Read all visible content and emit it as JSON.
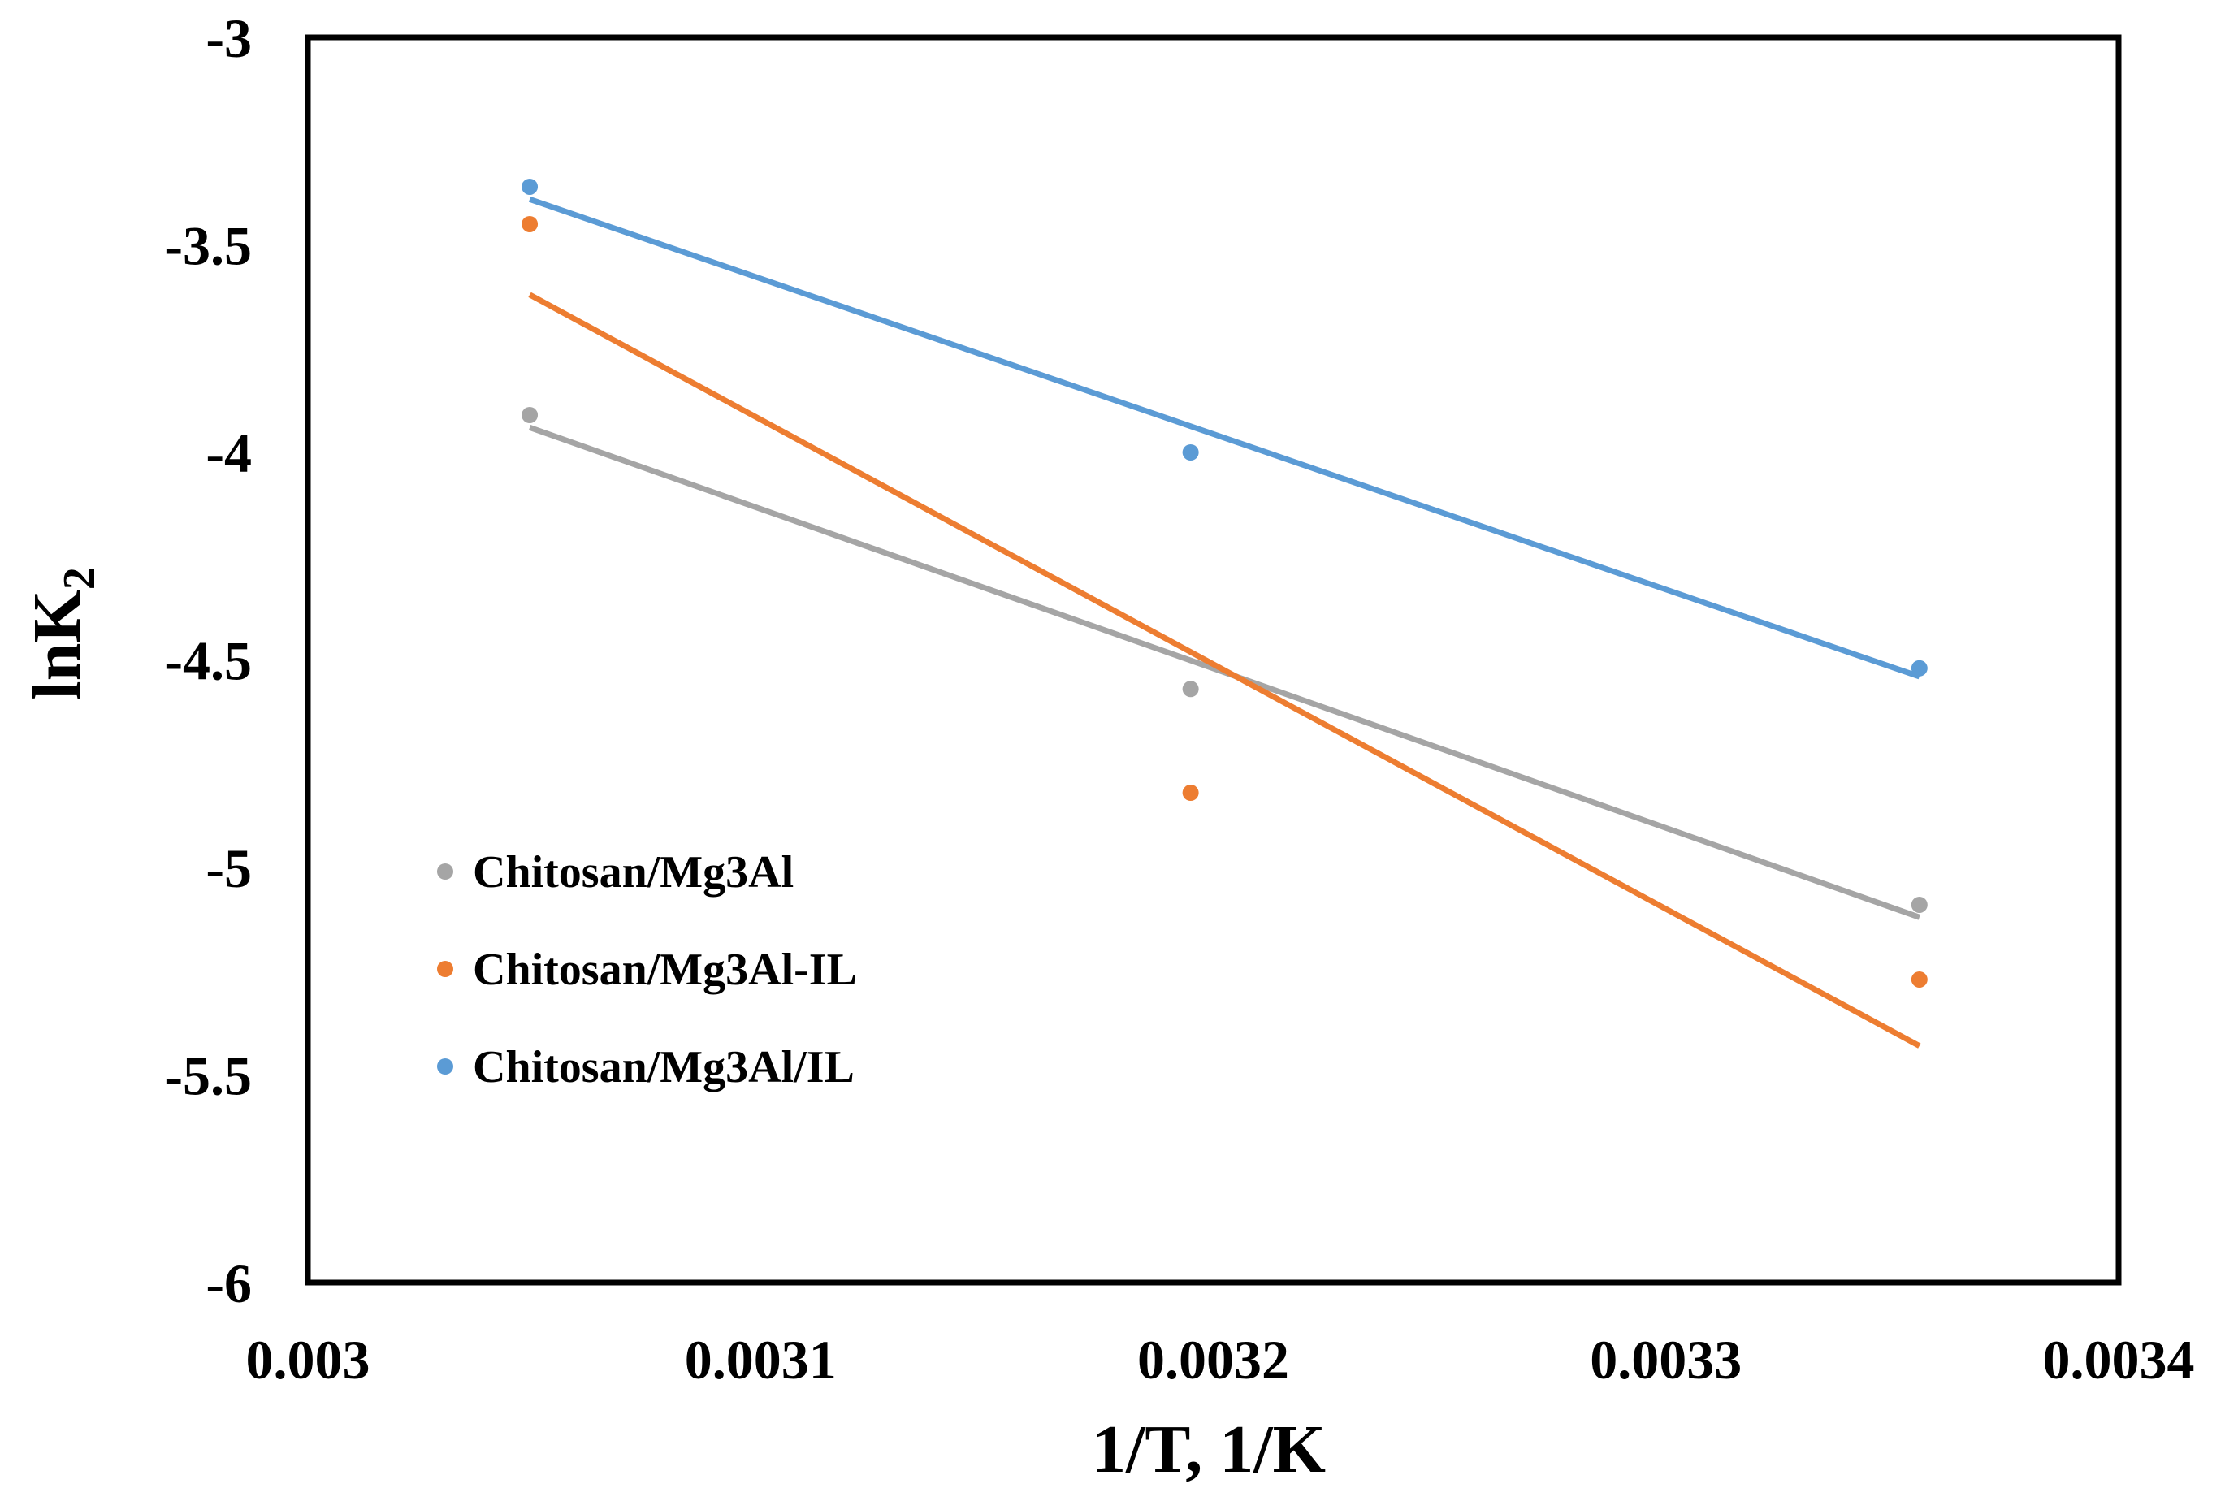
{
  "chart_data": {
    "type": "scatter",
    "title": "",
    "xlabel": "1/T, 1/K",
    "ylabel": {
      "main": "lnK",
      "subscript": "2"
    },
    "xlim": [
      0.003,
      0.0034
    ],
    "ylim": [
      -6,
      -3
    ],
    "xticks": [
      "0.003",
      "0.0031",
      "0.0032",
      "0.0033",
      "0.0034"
    ],
    "yticks": [
      "-3",
      "-3.5",
      "-4",
      "-4.5",
      "-5",
      "-5.5",
      "-6"
    ],
    "grid": false,
    "legend_position": "lower-left",
    "series": [
      {
        "name": "Chitosan/Mg3Al",
        "color": "#a5a5a5",
        "x": [
          0.003049,
          0.003195,
          0.003356
        ],
        "y": [
          -3.91,
          -4.57,
          -5.09
        ],
        "trendline": {
          "type": "linear",
          "from": [
            0.003049,
            -3.94
          ],
          "to": [
            0.003356,
            -5.12
          ]
        }
      },
      {
        "name": "Chitosan/Mg3Al-IL",
        "color": "#ed7d31",
        "x": [
          0.003049,
          0.003195,
          0.003356
        ],
        "y": [
          -3.45,
          -4.82,
          -5.27
        ],
        "trendline": {
          "type": "linear",
          "from": [
            0.003049,
            -3.62
          ],
          "to": [
            0.003356,
            -5.43
          ]
        }
      },
      {
        "name": "Chitosan/Mg3Al/IL",
        "color": "#5b9bd5",
        "x": [
          0.003049,
          0.003195,
          0.003356
        ],
        "y": [
          -3.36,
          -4.0,
          -4.52
        ],
        "trendline": {
          "type": "linear",
          "from": [
            0.003049,
            -3.39
          ],
          "to": [
            0.003356,
            -4.54
          ]
        }
      }
    ]
  }
}
